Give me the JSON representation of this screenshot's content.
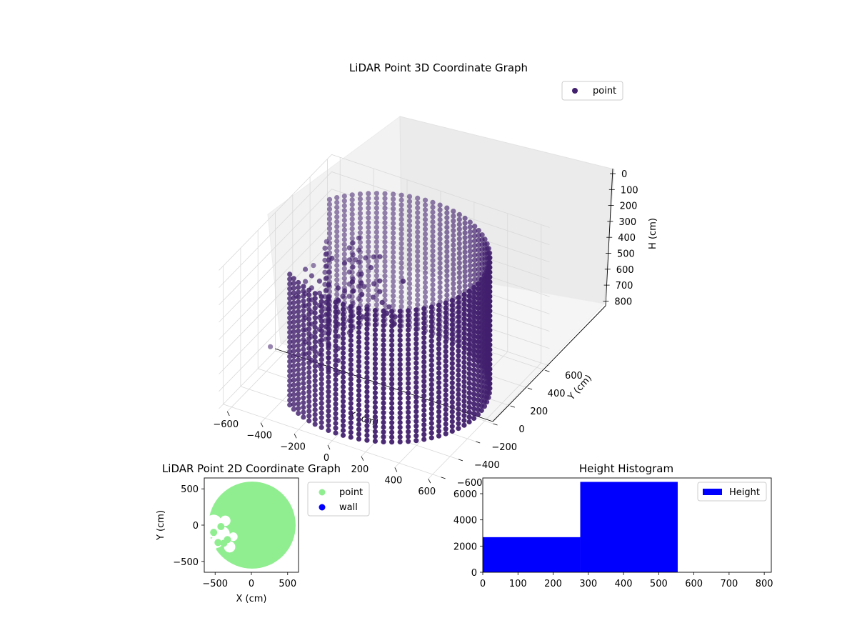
{
  "colors": {
    "point3d": "#42206e",
    "point2d": "#90ee90",
    "wall": "#0000ff",
    "histogram_bar": "#0000ff",
    "pane_fill": "#f2f2f2",
    "grid": "#d9d9d9"
  },
  "chart_data": [
    {
      "type": "scatter",
      "projection": "3d",
      "title": "LiDAR Point 3D Coordinate Graph",
      "xlabel": "X (cm)",
      "ylabel": "Y (cm)",
      "zlabel": "H (cm)",
      "xlim": [
        -650,
        650
      ],
      "ylim": [
        -650,
        650
      ],
      "zlim": [
        800,
        0
      ],
      "xticks": [
        "−600",
        "−400",
        "−200",
        "0",
        "200",
        "400",
        "600"
      ],
      "yticks": [
        "−600",
        "−400",
        "−200",
        "0",
        "200",
        "400",
        "600"
      ],
      "zticks": [
        "0",
        "100",
        "200",
        "300",
        "400",
        "500",
        "600",
        "700",
        "800"
      ],
      "legend": {
        "position": "top-right",
        "entries": [
          "point"
        ]
      },
      "series": [
        {
          "name": "point",
          "shape": "cylindrical wall of points",
          "radius": 560,
          "h_range": [
            0,
            800
          ],
          "gap_angle_deg": [
            150,
            230
          ],
          "x": [],
          "y": [],
          "h": []
        }
      ]
    },
    {
      "type": "scatter",
      "title": "LiDAR Point 2D Coordinate Graph",
      "xlabel": "X (cm)",
      "ylabel": "Y (cm)",
      "xlim": [
        -650,
        650
      ],
      "ylim": [
        -650,
        650
      ],
      "xticks": [
        "−500",
        "0",
        "500"
      ],
      "yticks": [
        "−500",
        "0",
        "500"
      ],
      "legend": {
        "position": "outside-right",
        "entries": [
          "point",
          "wall"
        ]
      },
      "series": [
        {
          "name": "point",
          "shape": "filled disc",
          "radius": 600
        },
        {
          "name": "wall",
          "x": [],
          "y": []
        }
      ]
    },
    {
      "type": "bar",
      "title": "Height Histogram",
      "xlim": [
        0,
        820
      ],
      "ylim": [
        0,
        7200
      ],
      "xticks": [
        "0",
        "100",
        "200",
        "300",
        "400",
        "500",
        "600",
        "700",
        "800"
      ],
      "yticks": [
        "0",
        "2000",
        "4000",
        "6000"
      ],
      "legend": {
        "position": "top-right",
        "entries": [
          "Height"
        ]
      },
      "bins": [
        {
          "x0": 0,
          "x1": 277,
          "count": 2680
        },
        {
          "x0": 277,
          "x1": 554,
          "count": 6900
        },
        {
          "x0": 554,
          "x1": 820,
          "count": 0
        }
      ]
    }
  ]
}
